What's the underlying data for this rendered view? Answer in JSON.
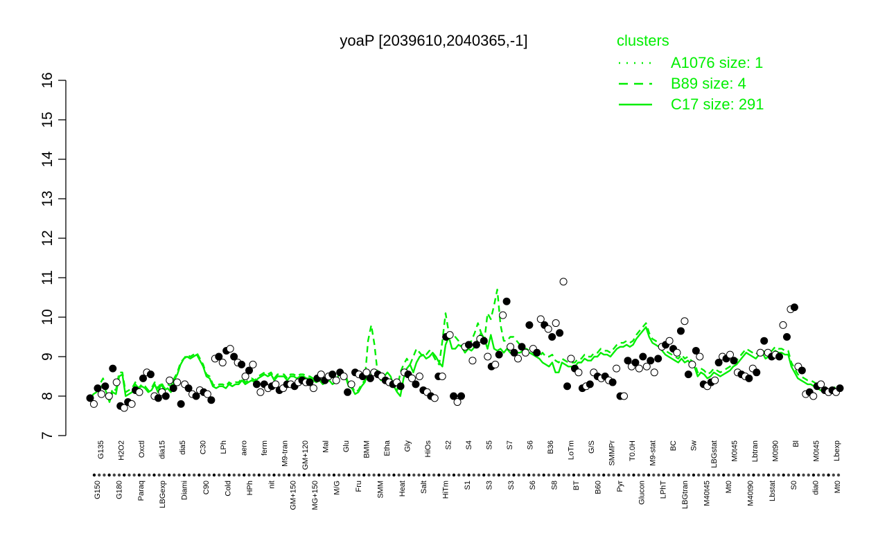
{
  "chart_data": {
    "type": "line",
    "title": "yoaP [2039610,2040365,-1]",
    "xlabel": "",
    "ylabel": "",
    "ylim": [
      7,
      16
    ],
    "yticks": [
      7,
      8,
      9,
      10,
      11,
      12,
      13,
      14,
      15,
      16
    ],
    "grid": false,
    "legend_position": "top-right",
    "legend_title": "clusters",
    "legend": [
      {
        "label": "A1076 size: 1",
        "style": "dotted",
        "color": "#00ee00"
      },
      {
        "label": "B89 size: 4",
        "style": "dashed",
        "color": "#00ee00"
      },
      {
        "label": "C17 size: 291",
        "style": "solid",
        "color": "#00ee00"
      }
    ],
    "top_tick_labels": [
      "G135",
      "H2O2",
      "Oxctl",
      "dia15",
      "dia5",
      "C30",
      "LPh",
      "aero",
      "ferm",
      "M9-tran",
      "GM+120",
      "Mal",
      "Glu",
      "BMM",
      "Etha",
      "Gly",
      "HiOs",
      "S2",
      "S4",
      "S5",
      "S7",
      "S6",
      "B36",
      "LoTm",
      "G/S",
      "SMMPr",
      "T0.0H",
      "M9-stat",
      "BC",
      "Sw",
      "LBGstat",
      "M0t45",
      "Lbtran",
      "M0t90",
      "Bl",
      "M0t45",
      "Lbexp"
    ],
    "bottom_tick_labels": [
      "G150",
      "G180",
      "Paraq",
      "LBGexp",
      "Diami",
      "C90",
      "Cold",
      "HPh",
      "nit",
      "GM+150",
      "MG+150",
      "M/G",
      "Fru",
      "SMM",
      "Heat",
      "Salt",
      "HiTm",
      "S1",
      "S3",
      "S3",
      "S6",
      "S8",
      "BT",
      "B60",
      "Pyr",
      "Glucon",
      "LPhT",
      "LBGtran",
      "M40t45",
      "Mt0",
      "M40t90",
      "Lbstat",
      "S0",
      "dia0",
      "Mt0"
    ],
    "series": [
      {
        "style": "solid",
        "color": "#00ee00",
        "values": [
          7.9,
          8.05,
          8.1,
          8.2,
          8.3,
          8.1,
          7.85,
          8.1,
          8.05,
          8.5,
          8.55,
          8.0,
          8.05,
          8.1,
          8.3,
          8.2,
          8.25,
          8.2,
          8.1,
          8.15,
          8.3,
          8.1,
          8.3,
          8.15,
          8.2,
          8.1,
          8.4,
          8.55,
          8.8,
          8.95,
          9.0,
          8.95,
          9.0,
          9.05,
          8.9,
          8.75,
          8.5,
          8.45,
          8.25,
          8.2,
          8.25,
          8.25,
          8.2,
          8.3,
          8.25,
          8.3,
          8.3,
          8.4,
          8.3,
          8.35,
          8.4,
          8.35,
          8.45,
          8.5,
          8.55,
          8.5,
          8.55,
          8.4,
          8.5,
          8.5,
          8.5,
          8.4,
          8.5,
          8.5,
          8.45,
          8.5,
          8.5,
          8.45,
          8.45,
          8.4,
          8.35,
          8.4,
          8.3,
          8.35,
          8.4,
          8.3,
          8.35,
          8.55,
          8.55,
          8.5,
          8.25,
          8.2,
          8.05,
          8.1,
          8.25,
          8.35,
          8.6,
          8.5,
          8.55,
          8.6,
          8.45,
          8.5,
          8.6,
          8.5,
          8.25,
          8.1,
          8.0,
          8.45,
          8.7,
          8.8,
          8.6,
          8.85,
          9.0,
          9.05,
          8.95,
          9.0,
          9.1,
          9.0,
          8.85,
          8.75,
          9.3,
          9.5,
          9.2,
          9.2,
          9.3,
          9.25,
          9.1,
          9.2,
          9.15,
          9.25,
          9.45,
          9.6,
          9.45,
          9.2,
          9.55,
          9.2,
          9.15,
          9.2,
          9.1,
          9.2,
          9.1,
          9.05,
          9.1,
          9.1,
          9.15,
          9.1,
          9.1,
          9.05,
          9.0,
          8.95,
          8.85,
          8.8,
          8.75,
          8.85,
          8.6,
          8.6,
          8.85,
          8.8,
          8.75,
          8.75,
          8.75,
          8.85,
          8.85,
          8.95,
          8.9,
          8.9,
          9.0,
          9.0,
          9.1,
          9.05,
          9.05,
          9.0,
          9.1,
          9.2,
          9.25,
          9.25,
          9.3,
          9.25,
          9.3,
          9.45,
          9.55,
          9.65,
          9.75,
          9.5,
          9.35,
          9.3,
          9.25,
          9.15,
          9.05,
          9.0,
          8.95,
          8.9,
          8.85,
          8.95,
          8.85,
          8.9,
          8.8,
          8.75,
          8.5,
          8.6,
          8.55,
          8.45,
          8.5,
          8.6,
          8.55,
          8.5,
          8.55,
          8.6,
          8.65,
          8.75,
          8.8,
          8.9,
          9.0,
          9.1,
          9.05,
          9.0,
          8.95,
          9.05,
          9.1,
          8.95,
          9.0,
          9.05,
          9.15,
          9.1,
          9.1,
          9.05,
          9.05,
          8.75,
          8.6,
          8.45,
          8.4,
          8.35,
          8.3,
          8.3,
          8.25,
          8.2,
          8.15,
          8.1,
          8.15,
          8.1,
          8.1,
          8.15,
          8.15
        ]
      },
      {
        "style": "dashed",
        "color": "#00ee00",
        "values": [
          7.9,
          8.05,
          8.15,
          8.3,
          8.45,
          8.2,
          7.9,
          8.2,
          8.15,
          8.6,
          8.6,
          8.1,
          8.15,
          8.2,
          8.35,
          8.2,
          8.3,
          8.25,
          8.15,
          8.2,
          8.35,
          8.2,
          8.35,
          8.2,
          8.3,
          8.25,
          8.45,
          8.6,
          8.85,
          8.95,
          9.05,
          9.0,
          9.05,
          9.1,
          8.95,
          8.8,
          8.55,
          8.5,
          8.3,
          8.25,
          8.3,
          8.3,
          8.25,
          8.35,
          8.3,
          8.35,
          8.35,
          8.45,
          8.35,
          8.4,
          8.45,
          8.4,
          8.5,
          8.55,
          8.6,
          8.55,
          8.6,
          8.45,
          8.55,
          8.55,
          8.55,
          8.45,
          8.55,
          8.55,
          8.5,
          8.55,
          8.55,
          8.5,
          8.5,
          8.45,
          8.4,
          8.45,
          8.35,
          8.4,
          8.45,
          8.35,
          8.4,
          8.6,
          8.6,
          8.55,
          8.3,
          8.25,
          8.1,
          8.15,
          8.3,
          8.4,
          9.4,
          9.8,
          9.3,
          8.55,
          8.4,
          8.45,
          8.35,
          8.25,
          8.2,
          8.15,
          8.6,
          8.8,
          8.95,
          8.8,
          9.0,
          9.2,
          9.1,
          9.0,
          9.05,
          9.15,
          9.05,
          8.9,
          8.8,
          9.4,
          10.1,
          9.6,
          9.45,
          9.5,
          9.4,
          9.25,
          9.35,
          9.3,
          9.4,
          9.6,
          9.85,
          9.6,
          9.4,
          10.1,
          9.95,
          10.3,
          10.7,
          9.8,
          9.4,
          9.4,
          9.5,
          9.5,
          9.4,
          9.3,
          9.2,
          9.2,
          9.15,
          9.1,
          9.05,
          9.0,
          9.1,
          9.0,
          9.0,
          9.05,
          8.9,
          8.85,
          8.95,
          8.9,
          8.85,
          8.85,
          8.85,
          8.95,
          8.95,
          9.05,
          9.0,
          9.0,
          9.1,
          9.1,
          9.2,
          9.15,
          9.15,
          9.1,
          9.2,
          9.3,
          9.35,
          9.35,
          9.4,
          9.35,
          9.4,
          9.55,
          9.65,
          9.75,
          9.85,
          9.6,
          9.45,
          9.4,
          9.35,
          9.25,
          9.15,
          9.1,
          9.05,
          9.0,
          8.95,
          9.05,
          8.95,
          9.0,
          8.9,
          8.85,
          8.6,
          8.7,
          8.65,
          8.55,
          8.6,
          8.7,
          8.65,
          8.6,
          8.65,
          8.7,
          8.75,
          8.85,
          8.9,
          9.0,
          9.1,
          9.2,
          9.15,
          9.1,
          9.05,
          9.15,
          9.2,
          9.05,
          9.1,
          9.15,
          9.25,
          9.2,
          9.2,
          9.15,
          9.15,
          8.85,
          8.7,
          8.55,
          8.5,
          8.45,
          8.4,
          8.4,
          8.35,
          8.3,
          8.25,
          8.2,
          8.25,
          8.2,
          8.2,
          8.25,
          8.25
        ]
      },
      {
        "style": "points",
        "color": "#000000",
        "values": [
          7.95,
          7.8,
          8.2,
          8.05,
          8.25,
          8.0,
          8.7,
          8.35,
          7.75,
          7.7,
          7.85,
          7.8,
          8.15,
          8.1,
          8.45,
          8.6,
          8.55,
          8.0,
          7.95,
          8.1,
          8.0,
          8.4,
          8.2,
          8.35,
          7.8,
          8.3,
          8.2,
          8.05,
          8.0,
          8.15,
          8.1,
          8.05,
          7.9,
          8.95,
          9.0,
          8.85,
          9.15,
          9.2,
          9.0,
          8.85,
          8.8,
          8.5,
          8.65,
          8.8,
          8.3,
          8.1,
          8.3,
          8.2,
          8.25,
          8.3,
          8.15,
          8.2,
          8.3,
          8.3,
          8.25,
          8.35,
          8.4,
          8.35,
          8.35,
          8.2,
          8.45,
          8.55,
          8.4,
          8.5,
          8.55,
          8.4,
          8.6,
          8.5,
          8.1,
          8.3,
          8.6,
          8.55,
          8.5,
          8.6,
          8.45,
          8.6,
          8.55,
          8.5,
          8.4,
          8.35,
          8.3,
          8.35,
          8.25,
          8.6,
          8.55,
          8.45,
          8.3,
          8.5,
          8.15,
          8.1,
          8.0,
          7.95,
          8.5,
          8.5,
          9.5,
          9.55,
          8.0,
          7.85,
          8.0,
          9.25,
          9.3,
          8.9,
          9.3,
          9.45,
          9.4,
          9.0,
          8.75,
          8.8,
          9.05,
          10.05,
          10.4,
          9.25,
          9.1,
          8.95,
          9.25,
          9.1,
          9.8,
          9.2,
          9.1,
          9.95,
          9.8,
          9.7,
          9.5,
          9.85,
          9.6,
          10.9,
          8.25,
          8.95,
          8.7,
          8.6,
          8.2,
          8.25,
          8.3,
          8.6,
          8.5,
          8.45,
          8.5,
          8.4,
          8.35,
          8.7,
          8.0,
          8.0,
          8.9,
          8.75,
          8.85,
          8.7,
          9.0,
          8.75,
          8.9,
          8.6,
          8.95,
          9.25,
          9.3,
          9.4,
          9.2,
          9.1,
          9.65,
          9.9,
          8.55,
          8.8,
          9.15,
          9.0,
          8.3,
          8.25,
          8.35,
          8.4,
          8.85,
          9.0,
          8.95,
          9.05,
          8.9,
          8.6,
          8.55,
          8.5,
          8.45,
          8.7,
          8.6,
          9.1,
          9.4,
          9.1,
          9.0,
          9.05,
          9.0,
          9.8,
          9.5,
          10.2,
          10.25,
          8.75,
          8.65,
          8.05,
          8.1,
          8.0,
          8.25,
          8.3,
          8.15,
          8.1,
          8.15,
          8.1,
          8.2
        ]
      }
    ]
  }
}
